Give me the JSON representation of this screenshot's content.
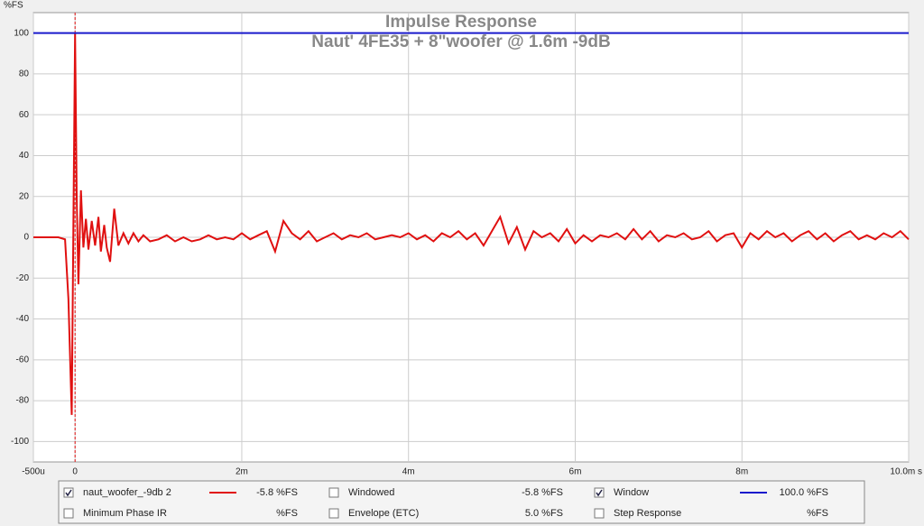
{
  "chart_data": {
    "type": "line",
    "title": "Impulse Response",
    "subtitle": "Naut' 4FE35 + 8\"woofer @ 1.6m -9dB",
    "y_label": "%FS",
    "xlim": [
      -0.5,
      10
    ],
    "ylim": [
      -110,
      110
    ],
    "xticks": [
      {
        "value": -0.5,
        "label": "-500u"
      },
      0,
      {
        "value": 2,
        "label": "2m"
      },
      {
        "value": 4,
        "label": "4m"
      },
      {
        "value": 6,
        "label": "6m"
      },
      {
        "value": 8,
        "label": "8m"
      },
      {
        "value": 10,
        "label": "10.0m s"
      }
    ],
    "yticks": [
      100,
      80,
      60,
      40,
      20,
      0,
      -20,
      -40,
      -60,
      -80,
      -100
    ],
    "grid": true,
    "marker_x": 0,
    "series": [
      {
        "name": "naut_woofer_-9db 2",
        "color": "#e01010",
        "readout": "-5.8 %FS",
        "checked": true,
        "x": [
          -0.5,
          -0.2,
          -0.12,
          -0.08,
          -0.04,
          0,
          0.02,
          0.04,
          0.07,
          0.1,
          0.13,
          0.16,
          0.2,
          0.24,
          0.28,
          0.31,
          0.35,
          0.38,
          0.42,
          0.47,
          0.52,
          0.58,
          0.64,
          0.7,
          0.76,
          0.82,
          0.9,
          1.0,
          1.1,
          1.2,
          1.3,
          1.4,
          1.5,
          1.6,
          1.7,
          1.8,
          1.9,
          2.0,
          2.1,
          2.2,
          2.3,
          2.4,
          2.5,
          2.6,
          2.7,
          2.8,
          2.9,
          3.0,
          3.1,
          3.2,
          3.3,
          3.4,
          3.5,
          3.6,
          3.7,
          3.8,
          3.9,
          4.0,
          4.1,
          4.2,
          4.3,
          4.4,
          4.5,
          4.6,
          4.7,
          4.8,
          4.9,
          5.0,
          5.1,
          5.2,
          5.3,
          5.4,
          5.5,
          5.6,
          5.7,
          5.8,
          5.9,
          6.0,
          6.1,
          6.2,
          6.3,
          6.4,
          6.5,
          6.6,
          6.7,
          6.8,
          6.9,
          7.0,
          7.1,
          7.2,
          7.3,
          7.4,
          7.5,
          7.6,
          7.7,
          7.8,
          7.9,
          8.0,
          8.1,
          8.2,
          8.3,
          8.4,
          8.5,
          8.6,
          8.7,
          8.8,
          8.9,
          9.0,
          9.1,
          9.2,
          9.3,
          9.4,
          9.5,
          9.6,
          9.7,
          9.8,
          9.9,
          10.0
        ],
        "values": [
          0,
          0,
          -1,
          -30,
          -87,
          100,
          20,
          -23,
          23,
          -5,
          9,
          -6,
          8,
          -4,
          10,
          -7,
          6,
          -5,
          -12,
          14,
          -4,
          2,
          -3,
          2,
          -2,
          1,
          -2,
          -1,
          1,
          -2,
          0,
          -2,
          -1,
          1,
          -1,
          0,
          -1,
          2,
          -1,
          1,
          3,
          -7,
          8,
          2,
          -1,
          3,
          -2,
          0,
          2,
          -1,
          1,
          0,
          2,
          -1,
          0,
          1,
          0,
          2,
          -1,
          1,
          -2,
          2,
          0,
          3,
          -1,
          2,
          -4,
          3,
          10,
          -3,
          5,
          -6,
          3,
          0,
          2,
          -2,
          4,
          -3,
          1,
          -2,
          1,
          0,
          2,
          -1,
          4,
          -1,
          3,
          -2,
          1,
          0,
          2,
          -1,
          0,
          3,
          -2,
          1,
          2,
          -5,
          2,
          -1,
          3,
          0,
          2,
          -2,
          1,
          3,
          -1,
          2,
          -2,
          1,
          3,
          -1,
          1,
          -1,
          2,
          0,
          3,
          -1
        ]
      },
      {
        "name": "Window",
        "color": "#1a1acc",
        "readout": "100.0 %FS",
        "checked": true,
        "x": [
          -0.5,
          10
        ],
        "values": [
          100,
          100
        ]
      }
    ],
    "other_traces": [
      {
        "name": "Windowed",
        "readout": "-5.8 %FS",
        "checked": false,
        "color": "#c01010"
      },
      {
        "name": "Minimum Phase IR",
        "readout": "%FS",
        "checked": false,
        "color": "#999999"
      },
      {
        "name": "Envelope (ETC)",
        "readout": "5.0 %FS",
        "checked": false,
        "color": "#a01010"
      },
      {
        "name": "Step Response",
        "readout": "%FS",
        "checked": false,
        "color": "#333333"
      }
    ]
  }
}
